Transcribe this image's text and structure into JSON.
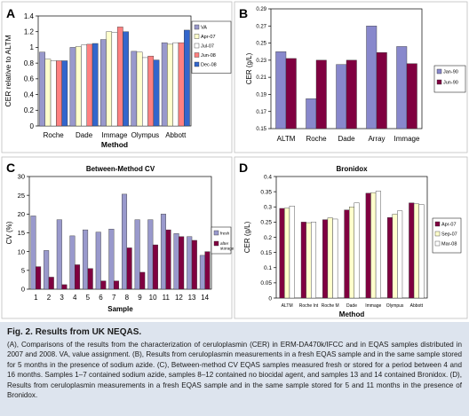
{
  "figure": {
    "caption_label": "Fig. 2.",
    "caption_title": "Results from UK NEQAS.",
    "caption_text": "(A), Comparisons of the results from the characterization of ceruloplasmin (CER) in ERM-DA470k/IFCC and in EQAS samples distributed in 2007 and 2008. VA, value assignment. (B), Results from ceruloplasmin measurements in a fresh EQAS sample and in the same sample stored for 5 months in the presence of sodium azide. (C), Between-method CV EQAS samples measured fresh or stored for a period between 4 and 16 months. Samples 1–7 contained sodium azide, samples 8–12 contained no biocidal agent, and samples 13 and 14 contained Bronidox. (D), Results from ceruloplasmin measurements in a fresh EQAS sample and in the same sample stored for 5 and 11 months in the presence of Bronidox.",
    "background": "#ffffff",
    "caption_background": "#dde4ee"
  },
  "chart_data": [
    {
      "panel": "A",
      "type": "bar",
      "title": "",
      "xlabel": "Method",
      "ylabel": "CER relative to ALTM",
      "ylim": [
        0,
        1.4
      ],
      "yticks": [
        "0",
        "0.2",
        "0.4",
        "0.6",
        "0.8",
        "1",
        "1.2",
        "1.4"
      ],
      "categories": [
        "Roche",
        "Dade",
        "Immage",
        "Olympus",
        "Abbott"
      ],
      "series": [
        {
          "name": "VA",
          "color": "#9999cc",
          "values": [
            0.94,
            1.0,
            1.1,
            0.95,
            1.06
          ]
        },
        {
          "name": "Apr-07",
          "color": "#ffffcc",
          "values": [
            0.85,
            1.01,
            1.2,
            0.94,
            1.04
          ]
        },
        {
          "name": "Jul-07",
          "color": "#ffffff",
          "values": [
            0.83,
            1.03,
            1.19,
            0.87,
            1.06
          ]
        },
        {
          "name": "Jun-08",
          "color": "#ff8080",
          "values": [
            0.83,
            1.04,
            1.26,
            0.89,
            1.06
          ]
        },
        {
          "name": "Dec-08",
          "color": "#3366cc",
          "values": [
            0.83,
            1.05,
            1.2,
            0.84,
            1.22
          ]
        }
      ],
      "legend": "right",
      "grid": false
    },
    {
      "panel": "B",
      "type": "bar",
      "title": "",
      "xlabel": "",
      "ylabel": "CER (g/L)",
      "ylim": [
        0.15,
        0.29
      ],
      "yticks": [
        "0.15",
        "0.17",
        "0.19",
        "0.21",
        "0.23",
        "0.25",
        "0.27",
        "0.29"
      ],
      "categories": [
        "ALTM",
        "Roche",
        "Dade",
        "Array",
        "Immage"
      ],
      "series": [
        {
          "name": "Jan-90",
          "color": "#8888cc",
          "values": [
            0.24,
            0.185,
            0.225,
            0.27,
            0.246
          ]
        },
        {
          "name": "Jun-90",
          "color": "#800040",
          "values": [
            0.232,
            0.23,
            0.23,
            0.239,
            0.226
          ]
        }
      ],
      "legend": "right",
      "grid": false
    },
    {
      "panel": "C",
      "type": "bar",
      "title": "Between-Method CV",
      "xlabel": "Sample",
      "ylabel": "CV (%)",
      "ylim": [
        0,
        30
      ],
      "yticks": [
        "0",
        "5",
        "10",
        "15",
        "20",
        "25",
        "30"
      ],
      "categories": [
        "1",
        "2",
        "3",
        "4",
        "5",
        "6",
        "7",
        "8",
        "9",
        "10",
        "11",
        "12",
        "13",
        "14"
      ],
      "series": [
        {
          "name": "fresh",
          "color": "#9999cc",
          "values": [
            19.5,
            10.3,
            18.5,
            14.2,
            15.8,
            15.2,
            16.0,
            25.3,
            18.5,
            18.5,
            20.0,
            14.8,
            14.0,
            9.0
          ]
        },
        {
          "name": "after storage",
          "color": "#800040",
          "values": [
            6.0,
            3.2,
            1.2,
            6.5,
            5.5,
            2.2,
            2.2,
            11.0,
            4.5,
            11.8,
            15.8,
            14.0,
            13.0,
            10.0
          ]
        }
      ],
      "legend": "right",
      "grid": false
    },
    {
      "panel": "D",
      "type": "bar",
      "title": "Bronidox",
      "xlabel": "Method",
      "ylabel": "CER (g/L)",
      "ylim": [
        0,
        0.4
      ],
      "yticks": [
        "0",
        "0.05",
        "0.1",
        "0.15",
        "0.2",
        "0.25",
        "0.3",
        "0.35",
        "0.4"
      ],
      "categories": [
        "ALTM",
        "Roche Int",
        "Roche M",
        "Dade",
        "Immage",
        "Olympus",
        "Abbott"
      ],
      "series": [
        {
          "name": "Apr-07",
          "color": "#800040",
          "values": [
            0.295,
            0.25,
            0.258,
            0.29,
            0.345,
            0.265,
            0.313
          ]
        },
        {
          "name": "Sep-07",
          "color": "#ffffcc",
          "values": [
            0.296,
            0.248,
            0.264,
            0.3,
            0.347,
            0.276,
            0.31
          ]
        },
        {
          "name": "Mar-08",
          "color": "#ffffff",
          "values": [
            0.303,
            0.25,
            0.26,
            0.313,
            0.352,
            0.287,
            0.308
          ]
        }
      ],
      "legend": "right",
      "grid": false
    }
  ]
}
